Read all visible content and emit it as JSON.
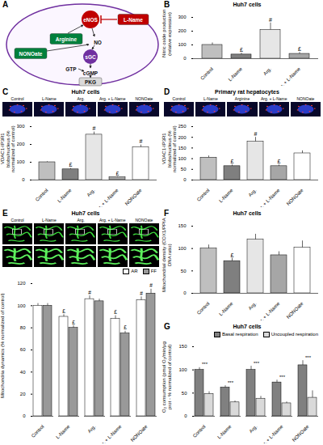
{
  "diagram": {
    "panel": "A",
    "nodes": [
      "eNOS",
      "L-Name",
      "Arginine",
      "NONOate",
      "NO",
      "sGC",
      "GTP",
      "cGMP",
      "PKG"
    ]
  },
  "chart_data": [
    {
      "panel": "B",
      "type": "bar",
      "title": "Huh7 cells",
      "y_label": "Nitric oxide production (relative expression)",
      "categories": [
        "Control",
        "L-Name",
        "Arg.",
        "Arg. + L-Name"
      ],
      "values": [
        100,
        30,
        210,
        35
      ],
      "errors": [
        15,
        10,
        50,
        10
      ],
      "annotations": [
        null,
        "£",
        "#",
        "£"
      ],
      "colors": [
        "#bfbfbf",
        "#7f7f7f",
        "#e6e6e6",
        "#a6a6a6"
      ],
      "ylim": [
        0,
        300
      ],
      "yticks": [
        0,
        100,
        200,
        300
      ]
    },
    {
      "panel": "C",
      "type": "bar",
      "title": "Huh7 cells",
      "image_labels": [
        "Control",
        "L-Name",
        "Arg.",
        "Arg. + L-Name",
        "NONOate"
      ],
      "y_label": "VDAC1-IP3R1 blobs/nucleus (% normalized of control)",
      "categories": [
        "Control",
        "L-Name",
        "Arg.",
        "Arg. + L-Name",
        "NONOate"
      ],
      "values": [
        100,
        60,
        255,
        15,
        185
      ],
      "errors": [
        3,
        5,
        15,
        3,
        12
      ],
      "annotations": [
        null,
        "£",
        "#",
        "£",
        "#"
      ],
      "colors": [
        "#bfbfbf",
        "#7f7f7f",
        "#e6e6e6",
        "#a6a6a6",
        "#ffffff"
      ],
      "ylim": [
        0,
        300
      ],
      "yticks": [
        0,
        100,
        200,
        300
      ]
    },
    {
      "panel": "D",
      "type": "bar",
      "title": "Primary rat hepatocytes",
      "image_labels": [
        "Control",
        "L-Name",
        "Arginine",
        "Arg. + L-Name",
        "NONOate"
      ],
      "y_label": "VDAC1-IP3R1 blobs/nucleus (% normalized of control)",
      "categories": [
        "Control",
        "L-Name",
        "Arg.",
        "Arg. + L-Name",
        "NONOate"
      ],
      "values": [
        105,
        65,
        180,
        65,
        125
      ],
      "errors": [
        8,
        6,
        20,
        6,
        12
      ],
      "annotations": [
        null,
        "£",
        "#",
        "£",
        null
      ],
      "colors": [
        "#bfbfbf",
        "#7f7f7f",
        "#e6e6e6",
        "#a6a6a6",
        "#ffffff"
      ],
      "ylim": [
        0,
        250
      ],
      "yticks": [
        0,
        50,
        100,
        150,
        200,
        250
      ]
    },
    {
      "panel": "E",
      "type": "bar",
      "title": "Huh7 cells",
      "image_labels": [
        "Control",
        "L-Name",
        "Arg.",
        "Arg. + L-Name",
        "NONOate"
      ],
      "y_label": "Mitochondria dynamics (% normalized of control)",
      "categories": [
        "Control",
        "L-Name",
        "Arg.",
        "Arg. + L-Name",
        "NONOate"
      ],
      "series": [
        {
          "name": "AR",
          "color": "#ffffff",
          "values": [
            100,
            90,
            106,
            88,
            105
          ],
          "errors": [
            2,
            2,
            3,
            3,
            3
          ],
          "annotations": [
            null,
            "£",
            "#",
            "£",
            "#"
          ]
        },
        {
          "name": "FF",
          "color": "#999999",
          "values": [
            100,
            80,
            104,
            75,
            111
          ],
          "errors": [
            2,
            2,
            2,
            2,
            4
          ],
          "annotations": [
            null,
            "£",
            null,
            "£",
            "#"
          ]
        }
      ],
      "legend": "right",
      "ylim": [
        0,
        120
      ],
      "yticks": [
        0,
        20,
        40,
        60,
        80,
        100,
        120
      ]
    },
    {
      "panel": "F",
      "type": "bar",
      "title": "Huh7 cells",
      "y_label": "Mitochondrial density (COX1/PPIA DNA ratio)",
      "categories": [
        "Control",
        "L-Name",
        "Arg.",
        "Arg. + L-Name",
        "NONOate"
      ],
      "values": [
        100,
        72,
        120,
        85,
        102
      ],
      "errors": [
        8,
        6,
        12,
        8,
        15
      ],
      "annotations": [
        null,
        "£",
        null,
        null,
        null
      ],
      "colors": [
        "#bfbfbf",
        "#7f7f7f",
        "#e6e6e6",
        "#a6a6a6",
        "#ffffff"
      ],
      "ylim": [
        0,
        150
      ],
      "yticks": [
        0,
        50,
        100,
        150
      ]
    },
    {
      "panel": "G",
      "type": "bar",
      "title": "Huh7 cells",
      "y_label": "O₂ consumption (pmol O₂/min/µg prot - % normalized of control)",
      "categories": [
        "Control",
        "L-Name",
        "Arg.",
        "Arg. + L-Name",
        "NONOate"
      ],
      "series": [
        {
          "name": "Basal respiration",
          "color": "#808080",
          "values": [
            100,
            62,
            100,
            73,
            110
          ],
          "errors": [
            5,
            4,
            8,
            5,
            10
          ]
        },
        {
          "name": "Uncoupled respiration",
          "color": "#d9d9d9",
          "values": [
            48,
            30,
            38,
            28,
            40
          ],
          "errors": [
            5,
            3,
            5,
            3,
            15
          ]
        }
      ],
      "annotations": [
        "***",
        "***",
        "***",
        "***",
        "***"
      ],
      "legend": "top-right",
      "ylim": [
        0,
        150
      ],
      "yticks": [
        0,
        50,
        100,
        150
      ]
    }
  ]
}
